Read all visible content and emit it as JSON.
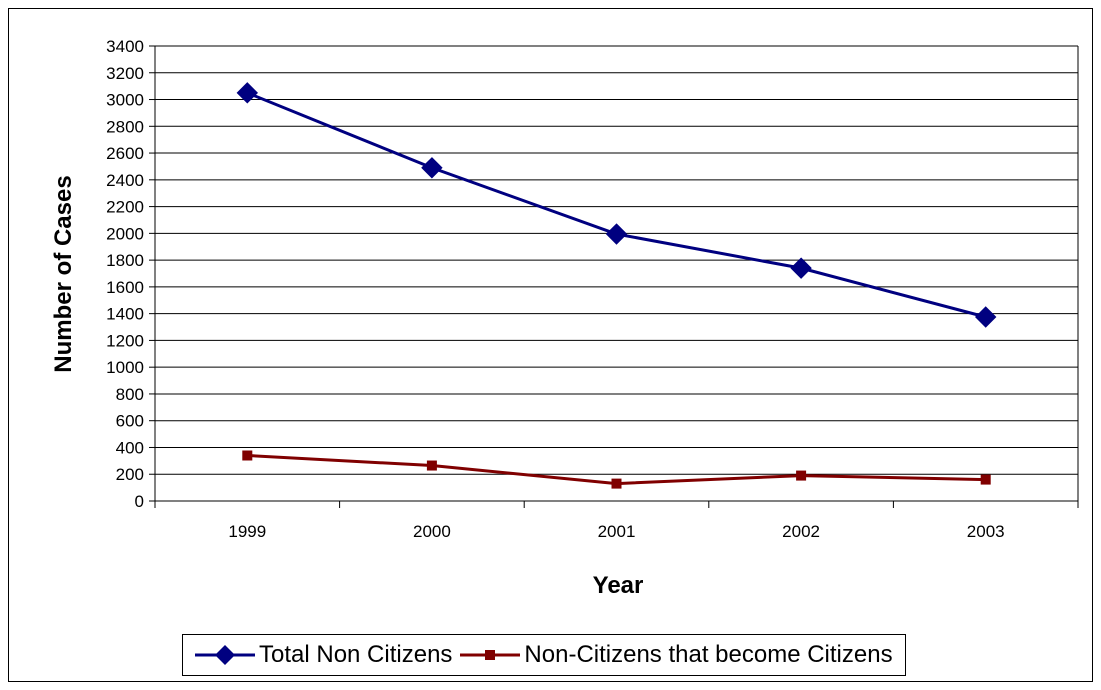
{
  "chart_data": {
    "type": "line",
    "title": "",
    "xlabel": "Year",
    "ylabel": "Number of Cases",
    "categories": [
      "1999",
      "2000",
      "2001",
      "2002",
      "2003"
    ],
    "ylim": [
      0,
      3400
    ],
    "y_ticks": [
      0,
      200,
      400,
      600,
      800,
      1000,
      1200,
      1400,
      1600,
      1800,
      2000,
      2200,
      2400,
      2600,
      2800,
      3000,
      3200,
      3400
    ],
    "grid": true,
    "legend_position": "bottom",
    "series": [
      {
        "name": "Total Non Citizens",
        "values": [
          3050,
          2490,
          1995,
          1740,
          1375
        ],
        "color": "#000080",
        "marker": "diamond"
      },
      {
        "name": "Non-Citizens that become Citizens",
        "values": [
          340,
          265,
          130,
          190,
          160
        ],
        "color": "#800000",
        "marker": "square"
      }
    ]
  }
}
